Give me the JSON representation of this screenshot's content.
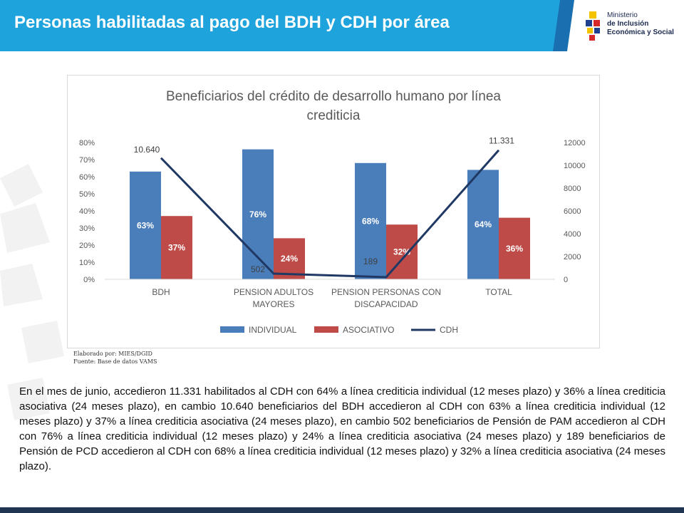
{
  "slide": {
    "title": "Personas habilitadas al pago del BDH y CDH por área",
    "logo": {
      "line1": "Ministerio",
      "line2": "de Inclusión",
      "line3": "Económica y Social"
    },
    "credits": {
      "line1": "Elaborado por: MIES/DGID",
      "line2": "Fuente: Base de datos VAMS"
    },
    "body_text": "En el mes de junio, accedieron 11.331 habilitados al CDH con 64% a línea crediticia individual (12 meses plazo) y 36% a línea crediticia asociativa (24 meses plazo), en cambio 10.640 beneficiarios del BDH accedieron al CDH con 63% a línea crediticia individual (12 meses plazo) y 37% a línea crediticia asociativa (24 meses plazo), en cambio 502 beneficiarios de Pensión de PAM accedieron al CDH con 76% a línea crediticia individual (12 meses plazo) y 24% a línea crediticia asociativa (24 meses plazo) y 189 beneficiarios de Pensión de PCD accedieron al CDH con 68% a línea crediticia individual (12 meses plazo) y 32% a línea crediticia asociativa (24 meses plazo).",
    "colors": {
      "header_blue": "#1fa3dc",
      "header_dark": "#1b3f73",
      "bottom_bar": "#1f3552"
    }
  },
  "chart_data": {
    "type": "bar",
    "title_lines": [
      "Beneficiarios del crédito de desarrollo humano por línea",
      "crediticia"
    ],
    "categories": [
      [
        "BDH"
      ],
      [
        "PENSION ADULTOS",
        "MAYORES"
      ],
      [
        "PENSION PERSONAS CON",
        "DISCAPACIDAD"
      ],
      [
        "TOTAL"
      ]
    ],
    "series": [
      {
        "name": "INDIVIDUAL",
        "kind": "bar",
        "axis": "left",
        "color": "#4a7ebb",
        "values": [
          0.63,
          0.76,
          0.68,
          0.64
        ],
        "labels": [
          "63%",
          "76%",
          "68%",
          "64%"
        ]
      },
      {
        "name": "ASOCIATIVO",
        "kind": "bar",
        "axis": "left",
        "color": "#be4b48",
        "values": [
          0.37,
          0.24,
          0.32,
          0.36
        ],
        "labels": [
          "37%",
          "24%",
          "32%",
          "36%"
        ]
      },
      {
        "name": "CDH",
        "kind": "line",
        "axis": "right",
        "color": "#1f3864",
        "values": [
          10640,
          502,
          189,
          11331
        ],
        "labels": [
          "10.640",
          "502",
          "189",
          "11.331"
        ]
      }
    ],
    "y_left": {
      "ylim": [
        0,
        0.8
      ],
      "ticks": [
        "0%",
        "10%",
        "20%",
        "30%",
        "40%",
        "50%",
        "60%",
        "70%",
        "80%"
      ]
    },
    "y_right": {
      "ylim": [
        0,
        12000
      ],
      "ticks": [
        "0",
        "2000",
        "4000",
        "6000",
        "8000",
        "10000",
        "12000"
      ]
    },
    "grid": false,
    "legend_position": "bottom"
  }
}
